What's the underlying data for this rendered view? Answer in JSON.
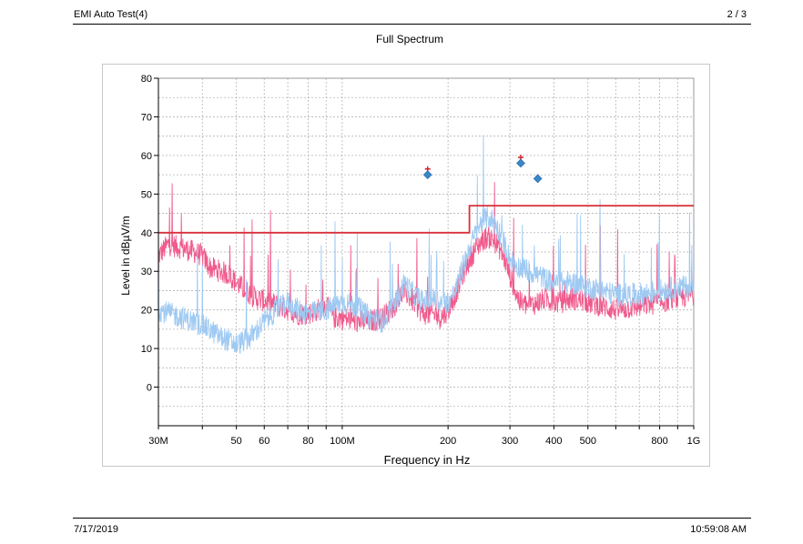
{
  "header": {
    "title": "EMI Auto Test(4)",
    "page": "2 / 3"
  },
  "footer": {
    "date": "7/17/2019",
    "time": "10:59:08 AM"
  },
  "chart_data": {
    "type": "line",
    "title": "Full Spectrum",
    "xlabel": "Frequency in Hz",
    "ylabel": "Level in dBµV/m",
    "x_scale": "log",
    "xlim": [
      30,
      1000
    ],
    "ylim": [
      -10,
      80
    ],
    "x_ticks": [
      {
        "v": 30,
        "label": "30M"
      },
      {
        "v": 50,
        "label": "50"
      },
      {
        "v": 60,
        "label": "60"
      },
      {
        "v": 80,
        "label": "80"
      },
      {
        "v": 100,
        "label": "100M"
      },
      {
        "v": 200,
        "label": "200"
      },
      {
        "v": 300,
        "label": "300"
      },
      {
        "v": 400,
        "label": "400"
      },
      {
        "v": 500,
        "label": "500"
      },
      {
        "v": 800,
        "label": "800"
      },
      {
        "v": 1000,
        "label": "1G"
      }
    ],
    "y_ticks": [
      0,
      10,
      20,
      30,
      40,
      50,
      60,
      70,
      80
    ],
    "grid": true,
    "limit_line": {
      "color": "#d8303a",
      "points": [
        [
          30,
          40
        ],
        [
          230,
          40
        ],
        [
          230,
          47
        ],
        [
          1000,
          47
        ]
      ]
    },
    "series": [
      {
        "color": "#f05a8c",
        "points": [
          [
            30,
            34
          ],
          [
            32,
            37
          ],
          [
            35,
            36
          ],
          [
            38,
            35
          ],
          [
            40,
            34
          ],
          [
            42,
            31
          ],
          [
            45,
            30
          ],
          [
            48,
            29
          ],
          [
            50,
            27
          ],
          [
            53,
            25
          ],
          [
            57,
            23
          ],
          [
            62,
            22
          ],
          [
            66,
            21
          ],
          [
            70,
            20
          ],
          [
            75,
            19
          ],
          [
            80,
            19
          ],
          [
            85,
            20
          ],
          [
            90,
            21
          ],
          [
            95,
            18
          ],
          [
            100,
            18
          ],
          [
            110,
            17
          ],
          [
            120,
            17
          ],
          [
            130,
            18
          ],
          [
            140,
            21
          ],
          [
            150,
            25
          ],
          [
            160,
            22
          ],
          [
            170,
            19
          ],
          [
            180,
            19
          ],
          [
            190,
            18
          ],
          [
            200,
            20
          ],
          [
            210,
            24
          ],
          [
            220,
            29
          ],
          [
            230,
            33
          ],
          [
            240,
            36
          ],
          [
            250,
            38
          ],
          [
            260,
            39
          ],
          [
            270,
            38
          ],
          [
            280,
            36
          ],
          [
            290,
            33
          ],
          [
            300,
            29
          ],
          [
            310,
            25
          ],
          [
            320,
            22
          ],
          [
            340,
            21
          ],
          [
            360,
            22
          ],
          [
            380,
            23
          ],
          [
            400,
            22
          ],
          [
            420,
            22
          ],
          [
            450,
            23
          ],
          [
            500,
            22
          ],
          [
            600,
            20
          ],
          [
            700,
            21
          ],
          [
            800,
            22
          ],
          [
            900,
            23
          ],
          [
            1000,
            24
          ]
        ]
      },
      {
        "color": "#9ec9f2",
        "points": [
          [
            30,
            20
          ],
          [
            35,
            18
          ],
          [
            40,
            16
          ],
          [
            45,
            13
          ],
          [
            50,
            11
          ],
          [
            55,
            13
          ],
          [
            60,
            17
          ],
          [
            65,
            20
          ],
          [
            70,
            22
          ],
          [
            75,
            20
          ],
          [
            80,
            19
          ],
          [
            90,
            20
          ],
          [
            100,
            22
          ],
          [
            110,
            21
          ],
          [
            120,
            18
          ],
          [
            130,
            17
          ],
          [
            140,
            21
          ],
          [
            150,
            27
          ],
          [
            160,
            24
          ],
          [
            170,
            22
          ],
          [
            180,
            23
          ],
          [
            190,
            22
          ],
          [
            200,
            22
          ],
          [
            210,
            25
          ],
          [
            220,
            31
          ],
          [
            230,
            36
          ],
          [
            240,
            40
          ],
          [
            250,
            43
          ],
          [
            260,
            44
          ],
          [
            270,
            43
          ],
          [
            280,
            40
          ],
          [
            290,
            37
          ],
          [
            300,
            33
          ],
          [
            320,
            31
          ],
          [
            340,
            30
          ],
          [
            360,
            29
          ],
          [
            380,
            28
          ],
          [
            400,
            27
          ],
          [
            450,
            27
          ],
          [
            500,
            26
          ],
          [
            600,
            24
          ],
          [
            700,
            24
          ],
          [
            800,
            25
          ],
          [
            900,
            26
          ],
          [
            1000,
            26
          ]
        ]
      }
    ],
    "markers_plus": [
      [
        175,
        56.5
      ],
      [
        322,
        59.5
      ]
    ],
    "markers_diamond": [
      [
        175,
        55
      ],
      [
        322,
        58
      ],
      [
        360,
        54
      ]
    ]
  }
}
